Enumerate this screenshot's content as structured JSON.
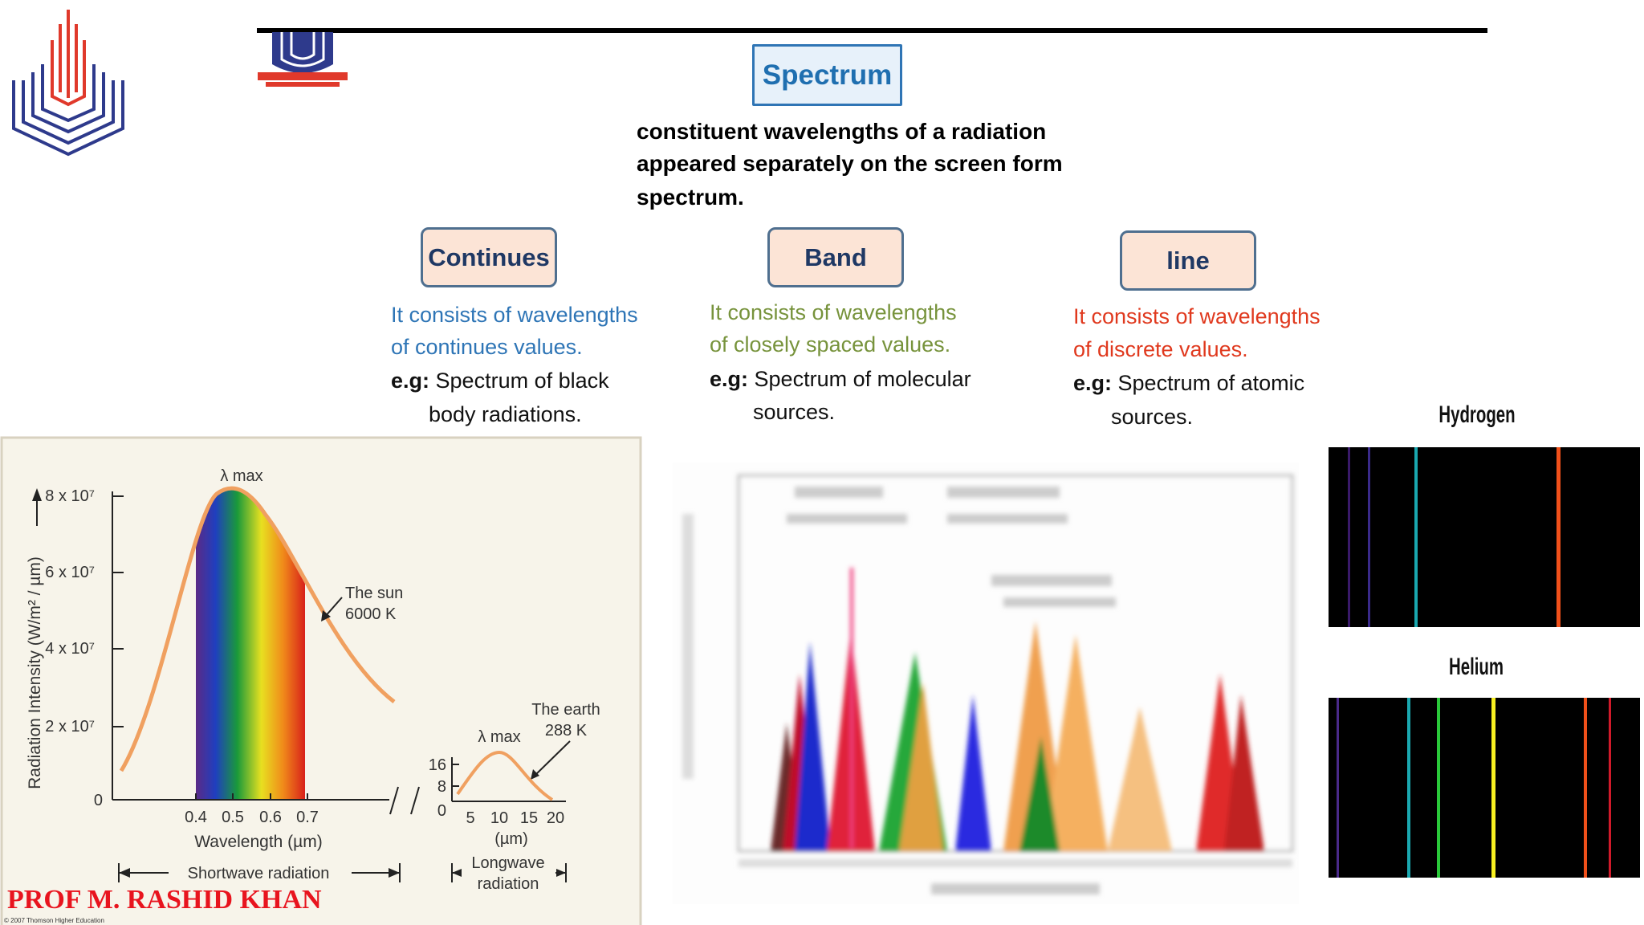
{
  "header": {
    "title": "Spectrum",
    "definition": [
      "constituent wavelengths of a radiation",
      "appeared separately on the screen form",
      "spectrum."
    ]
  },
  "types": [
    {
      "name": "Continues",
      "description": [
        "It consists of wavelengths",
        "of continues values."
      ],
      "example_label": "e.g:",
      "example": [
        "Spectrum of black",
        "body radiations."
      ]
    },
    {
      "name": "Band",
      "description": [
        "It consists of wavelengths",
        "of closely spaced values."
      ],
      "example_label": "e.g:",
      "example": [
        "Spectrum of molecular",
        "sources."
      ]
    },
    {
      "name": "line",
      "description": [
        "It consists of wavelengths",
        "of discrete values."
      ],
      "example_label": "e.g:",
      "example": [
        "Spectrum of atomic",
        "sources."
      ]
    }
  ],
  "blackbody_figure": {
    "y_axis_label": "Radiation Intensity (W/m² / µm)",
    "y_ticks": [
      "8 x 10⁷",
      "6 x 10⁷",
      "4 x 10⁷",
      "2 x 10⁷",
      "0"
    ],
    "x_ticks": [
      "0.4",
      "0.5",
      "0.6",
      "0.7"
    ],
    "x_axis_label": "Wavelength (µm)",
    "peak_label": "λ max",
    "sun_label": [
      "The sun",
      "6000 K"
    ],
    "shortwave_label": "Shortwave radiation",
    "earth_y_ticks": [
      "16",
      "8",
      "0"
    ],
    "earth_x_ticks": [
      "5",
      "10",
      "15",
      "20"
    ],
    "earth_x_unit": "(µm)",
    "earth_peak_label": "λ max",
    "earth_label": [
      "The earth",
      "288 K"
    ],
    "longwave_label": [
      "Longwave",
      "radiation"
    ],
    "copyright": "© 2007 Thomson Higher Education"
  },
  "emission_spectra": [
    {
      "name": "Hydrogen"
    },
    {
      "name": "Helium"
    }
  ],
  "footer": {
    "author": "PROF M. RASHID KHAN"
  }
}
